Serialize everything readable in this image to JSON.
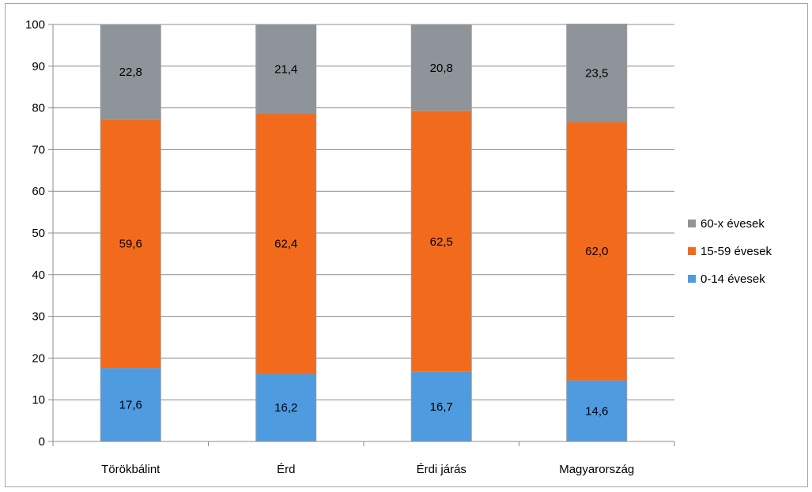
{
  "chart_data": {
    "type": "bar",
    "stacked": true,
    "categories": [
      "Törökbálint",
      "Érd",
      "Érdi járás",
      "Magyarország"
    ],
    "series": [
      {
        "name": "0-14 évesek",
        "color": "#4f9be0",
        "values": [
          17.6,
          16.2,
          16.7,
          14.6
        ],
        "labels": [
          "17,6",
          "16,2",
          "16,7",
          "14,6"
        ]
      },
      {
        "name": "15-59 évesek",
        "color": "#f26b1d",
        "values": [
          59.6,
          62.4,
          62.5,
          62.0
        ],
        "labels": [
          "59,6",
          "62,4",
          "62,5",
          "62,0"
        ]
      },
      {
        "name": "60-x évesek",
        "color": "#8e9499",
        "values": [
          22.8,
          21.4,
          20.8,
          23.5
        ],
        "labels": [
          "22,8",
          "21,4",
          "20,8",
          "23,5"
        ]
      }
    ],
    "ylim": [
      0,
      100
    ],
    "yticks": [
      "0",
      "10",
      "20",
      "30",
      "40",
      "50",
      "60",
      "70",
      "80",
      "90",
      "100"
    ],
    "grid": true,
    "legend": "right",
    "legend_order": [
      "60-x évesek",
      "15-59 évesek",
      "0-14 évesek"
    ]
  }
}
